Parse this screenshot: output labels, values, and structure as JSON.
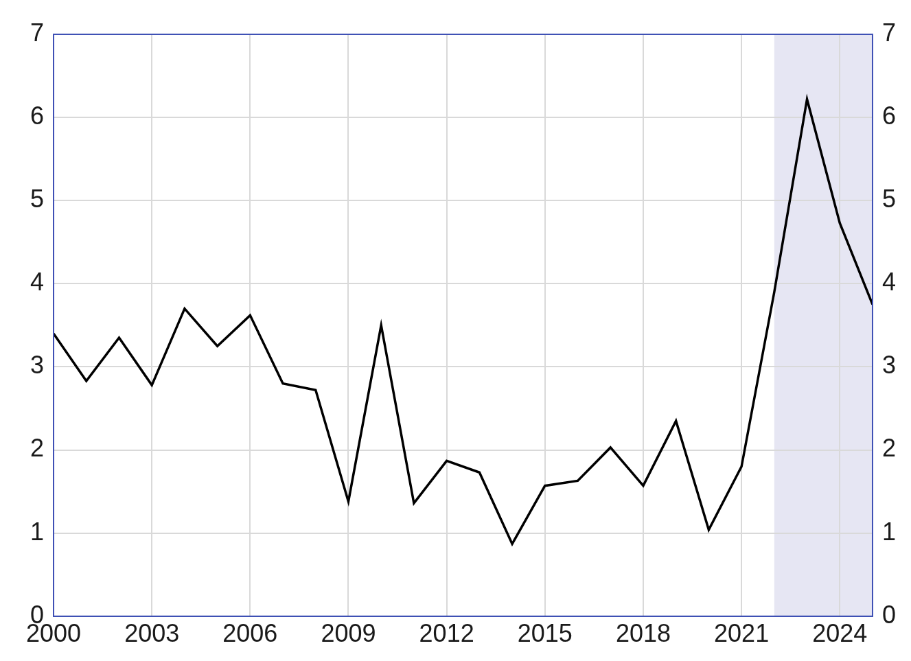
{
  "chart_data": {
    "type": "line",
    "x": [
      2000,
      2001,
      2002,
      2003,
      2004,
      2005,
      2006,
      2007,
      2008,
      2009,
      2010,
      2011,
      2012,
      2013,
      2014,
      2015,
      2016,
      2017,
      2018,
      2019,
      2020,
      2021,
      2022,
      2023,
      2024,
      2025
    ],
    "values": [
      3.4,
      2.83,
      3.35,
      2.78,
      3.7,
      3.25,
      3.62,
      2.8,
      2.72,
      1.38,
      3.5,
      1.36,
      1.87,
      1.73,
      0.87,
      1.57,
      1.63,
      2.03,
      1.57,
      2.35,
      1.04,
      1.8,
      3.9,
      6.22,
      4.73,
      3.75
    ],
    "color": "#000000",
    "xlim": [
      2000,
      2025
    ],
    "xticks": [
      2000,
      2003,
      2006,
      2009,
      2012,
      2015,
      2018,
      2021,
      2024
    ],
    "ylim": [
      0,
      7
    ],
    "yticks": [
      0,
      1,
      2,
      3,
      4,
      5,
      6,
      7
    ],
    "y2lim": [
      0,
      7
    ],
    "y2ticks": [
      0,
      1,
      2,
      3,
      4,
      5,
      6,
      7
    ],
    "shaded_range": [
      2022,
      2025
    ],
    "shaded_color": "#e6e6f3",
    "grid": true
  }
}
